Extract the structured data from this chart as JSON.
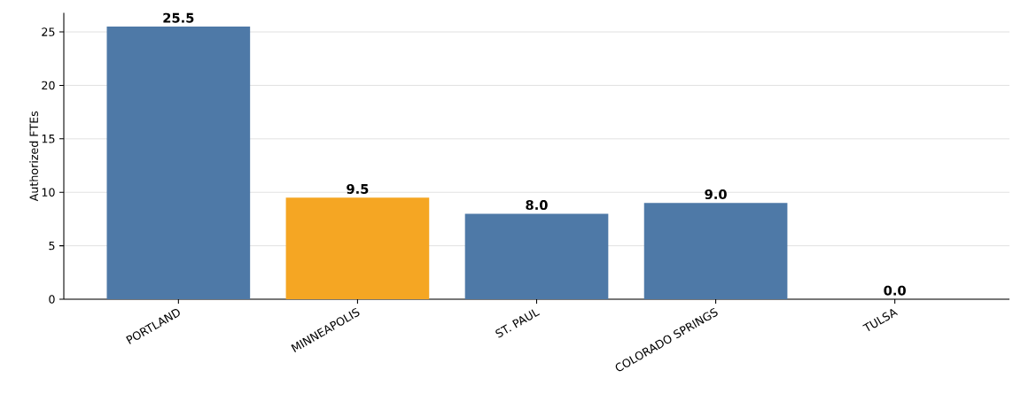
{
  "chart_data": {
    "type": "bar",
    "ylabel": "Authorized FTEs",
    "categories": [
      "PORTLAND",
      "MINNEAPOLIS",
      "ST. PAUL",
      "COLORADO SPRINGS",
      "TULSA"
    ],
    "values": [
      25.5,
      9.5,
      8.0,
      9.0,
      0.0
    ],
    "colors": [
      "#4e79a7",
      "#f5a623",
      "#4e79a7",
      "#4e79a7",
      "#4e79a7"
    ],
    "value_labels": [
      "25.5",
      "9.5",
      "8.0",
      "9.0",
      "0.0"
    ],
    "ylim": [
      0,
      26.775
    ],
    "yticks": [
      0,
      5,
      10,
      15,
      20,
      25
    ],
    "grid": "y"
  }
}
